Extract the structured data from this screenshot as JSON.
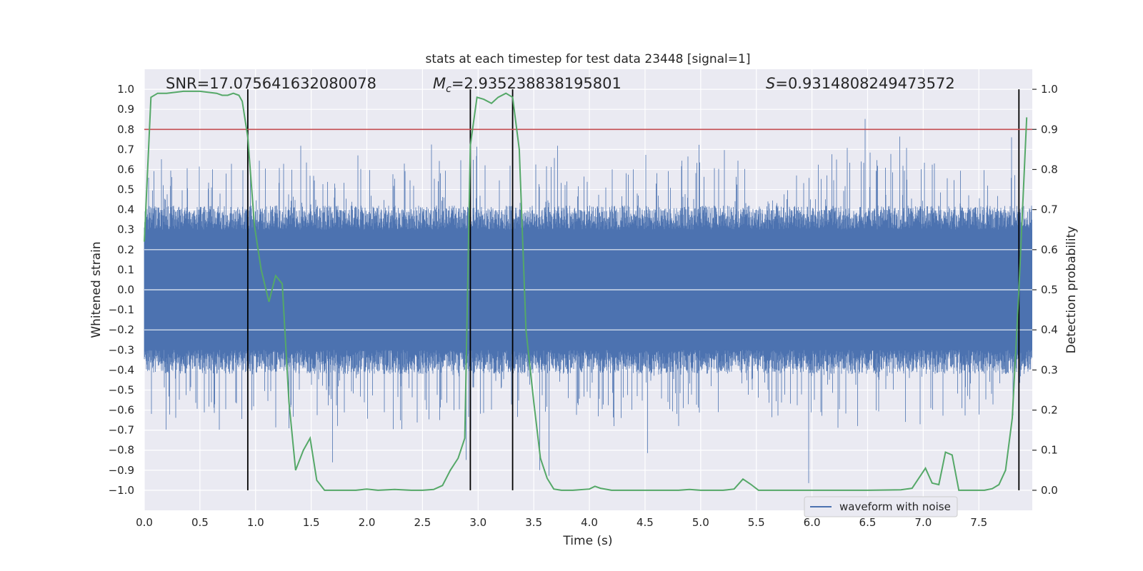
{
  "chart_data": {
    "type": "line",
    "title": "stats at each timestep for test data 23448 [signal=1]",
    "xlabel": "Time (s)",
    "ylabel": "Whitened strain",
    "y2label": "Detection probability",
    "xlim": [
      0.0,
      7.98
    ],
    "ylim": [
      -1.1,
      1.1
    ],
    "y2lim": [
      -0.05,
      1.05
    ],
    "x_ticks": [
      "0.0",
      "0.5",
      "1.0",
      "1.5",
      "2.0",
      "2.5",
      "3.0",
      "3.5",
      "4.0",
      "4.5",
      "5.0",
      "5.5",
      "6.0",
      "6.5",
      "7.0",
      "7.5"
    ],
    "x_tick_values": [
      0,
      0.5,
      1,
      1.5,
      2,
      2.5,
      3,
      3.5,
      4,
      4.5,
      5,
      5.5,
      6,
      6.5,
      7,
      7.5
    ],
    "y_ticks": [
      "1.0",
      "0.9",
      "0.8",
      "0.7",
      "0.6",
      "0.5",
      "0.4",
      "0.3",
      "0.2",
      "0.1",
      "0.0",
      "−0.1",
      "−0.2",
      "−0.3",
      "−0.4",
      "−0.5",
      "−0.6",
      "−0.7",
      "−0.8",
      "−0.9",
      "−1.0"
    ],
    "y_tick_values": [
      1.0,
      0.9,
      0.8,
      0.7,
      0.6,
      0.5,
      0.4,
      0.3,
      0.2,
      0.1,
      0.0,
      -0.1,
      -0.2,
      -0.3,
      -0.4,
      -0.5,
      -0.6,
      -0.7,
      -0.8,
      -0.9,
      -1.0
    ],
    "y2_ticks": [
      "1.0",
      "0.9",
      "0.8",
      "0.7",
      "0.6",
      "0.5",
      "0.4",
      "0.3",
      "0.2",
      "0.1",
      "0.0"
    ],
    "y2_tick_values": [
      1.0,
      0.9,
      0.8,
      0.7,
      0.6,
      0.5,
      0.4,
      0.3,
      0.2,
      0.1,
      0.0
    ],
    "annotations": {
      "snr": "SNR=17.075641632080078",
      "mc_symbol": "M",
      "mc_sub": "c",
      "mc_value": "=2.935238838195801",
      "s_symbol": "S",
      "s_value": "=0.9314808249473572"
    },
    "legend": {
      "label": "waveform with noise",
      "placement": "bottom-right"
    },
    "threshold": {
      "value": 0.9,
      "axis": "right",
      "color": "#c44e52"
    },
    "vertical_lines": [
      0.93,
      2.93,
      3.31,
      7.86
    ],
    "colors": {
      "waveform": "#4c72b0",
      "probability": "#55a868",
      "threshold": "#c44e52",
      "vlines": "#000000",
      "background": "#eaeaf2"
    },
    "series": [
      {
        "name": "detection probability",
        "axis": "right",
        "x": [
          0.0,
          0.06,
          0.12,
          0.2,
          0.35,
          0.5,
          0.65,
          0.7,
          0.75,
          0.8,
          0.85,
          0.88,
          0.93,
          0.99,
          1.05,
          1.12,
          1.18,
          1.24,
          1.3,
          1.36,
          1.43,
          1.49,
          1.55,
          1.62,
          1.7,
          1.8,
          1.9,
          2.0,
          2.1,
          2.25,
          2.4,
          2.5,
          2.6,
          2.68,
          2.75,
          2.82,
          2.88,
          2.93,
          2.99,
          3.05,
          3.12,
          3.18,
          3.25,
          3.31,
          3.37,
          3.43,
          3.5,
          3.56,
          3.62,
          3.68,
          3.75,
          3.85,
          4.0,
          4.05,
          4.1,
          4.2,
          4.4,
          4.6,
          4.8,
          4.9,
          5.0,
          5.2,
          5.3,
          5.38,
          5.45,
          5.52,
          5.7,
          6.0,
          6.5,
          6.8,
          6.9,
          6.96,
          7.02,
          7.08,
          7.14,
          7.2,
          7.26,
          7.32,
          7.38,
          7.45,
          7.55,
          7.62,
          7.68,
          7.74,
          7.8,
          7.86,
          7.93
        ],
        "values": [
          0.62,
          0.98,
          0.99,
          0.99,
          0.995,
          0.995,
          0.99,
          0.985,
          0.985,
          0.99,
          0.985,
          0.97,
          0.88,
          0.66,
          0.55,
          0.47,
          0.535,
          0.515,
          0.22,
          0.05,
          0.1,
          0.13,
          0.025,
          0.0,
          0.0,
          0.0,
          0.0,
          0.003,
          0.0,
          0.002,
          0.0,
          0.0,
          0.002,
          0.012,
          0.05,
          0.08,
          0.13,
          0.86,
          0.98,
          0.975,
          0.965,
          0.98,
          0.99,
          0.98,
          0.85,
          0.4,
          0.22,
          0.08,
          0.03,
          0.003,
          0.0,
          0.0,
          0.003,
          0.01,
          0.005,
          0.0,
          0.0,
          0.0,
          0.0,
          0.002,
          0.0,
          0.0,
          0.003,
          0.028,
          0.015,
          0.0,
          0.0,
          0.0,
          0.0,
          0.001,
          0.005,
          0.03,
          0.055,
          0.018,
          0.014,
          0.095,
          0.088,
          0.0,
          0.0,
          0.0,
          0.0,
          0.004,
          0.014,
          0.05,
          0.18,
          0.5,
          0.93
        ]
      }
    ]
  }
}
